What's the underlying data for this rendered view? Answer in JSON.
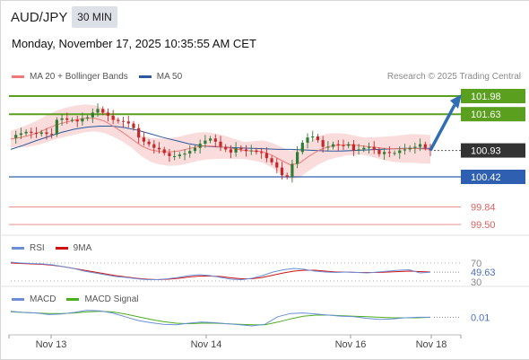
{
  "header": {
    "symbol": "AUD/JPY",
    "timeframe": "30 MIN",
    "datetime": "Monday, November 17, 2025 10:35:55 AM CET"
  },
  "legend": {
    "ma20": "MA 20 + Bollinger Bands",
    "ma50": "MA 50",
    "credit": "Research © 2025 Trading Central",
    "ma20_color": "#f27777",
    "ma50_color": "#2a5a9e"
  },
  "colors": {
    "up": "#2e7d32",
    "down": "#c62828",
    "bollinger_fill": "#f9d6d6",
    "resistance": "#5aa01e",
    "support": "#2e5fb0",
    "minor_level": "#e06060",
    "price_label": "#333333",
    "arrow": "#2f6db5",
    "rsi": "#6a8fd8",
    "rsi_ma": "#d11111",
    "macd": "#6a8fd8",
    "macd_signal": "#4caf20"
  },
  "chart_data": [
    {
      "type": "candlestick",
      "panel": "price",
      "x_ticks": [
        "Nov 13",
        "Nov 14",
        "Nov 16",
        "Nov 18"
      ],
      "ylim": [
        99.4,
        102.2
      ],
      "levels": [
        {
          "value": 101.98,
          "label": "101.98",
          "kind": "resistance"
        },
        {
          "value": 101.63,
          "label": "101.63",
          "kind": "resistance"
        },
        {
          "value": 100.93,
          "label": "100.93",
          "kind": "current"
        },
        {
          "value": 100.42,
          "label": "100.42",
          "kind": "support"
        },
        {
          "value": 99.84,
          "label": "99.84",
          "kind": "minor"
        },
        {
          "value": 99.5,
          "label": "99.50",
          "kind": "minor"
        }
      ],
      "close_series": [
        101.17,
        101.23,
        101.26,
        101.29,
        101.27,
        101.25,
        101.28,
        101.25,
        101.24,
        101.52,
        101.55,
        101.52,
        101.52,
        101.49,
        101.55,
        101.57,
        101.66,
        101.73,
        101.66,
        101.6,
        101.52,
        101.5,
        101.49,
        101.45,
        101.36,
        101.18,
        101.1,
        101.05,
        100.98,
        100.95,
        100.88,
        100.82,
        100.82,
        100.85,
        100.87,
        100.92,
        100.98,
        101.06,
        101.12,
        101.16,
        101.1,
        101.0,
        100.95,
        100.89,
        100.98,
        100.95,
        100.92,
        100.93,
        100.9,
        100.88,
        100.78,
        100.7,
        100.6,
        100.45,
        100.42,
        100.67,
        100.9,
        101.08,
        101.18,
        101.2,
        101.13,
        101.0,
        101.0,
        101.05,
        101.03,
        101.02,
        101.05,
        100.93,
        100.95,
        100.98,
        101.0,
        100.94,
        100.86,
        100.9,
        100.88,
        100.88,
        100.93,
        100.95,
        100.98,
        101.0,
        101.05,
        100.98,
        100.93
      ],
      "ma20_series": [
        101.15,
        101.18,
        101.22,
        101.28,
        101.36,
        101.43,
        101.48,
        101.52,
        101.55,
        101.55,
        101.5,
        101.4,
        101.28,
        101.15,
        101.02,
        100.94,
        100.91,
        100.9,
        100.92,
        100.96,
        101.0,
        101.02,
        101.01,
        100.99,
        100.96,
        100.93,
        100.92,
        100.91,
        100.84,
        100.74,
        100.65,
        100.69,
        100.82,
        100.93,
        101.0,
        101.03,
        101.04,
        101.03,
        101.01,
        100.99,
        100.97,
        100.96,
        100.96,
        100.97,
        100.96,
        100.95
      ],
      "ma50_series": [
        100.95,
        101.03,
        101.12,
        101.2,
        101.28,
        101.34,
        101.38,
        101.4,
        101.4,
        101.37,
        101.32,
        101.25,
        101.18,
        101.12,
        101.06,
        101.02,
        101.0,
        100.99,
        100.98,
        100.97,
        100.96,
        100.95,
        100.95,
        100.94,
        100.93,
        100.92,
        100.92,
        100.93,
        100.94,
        100.95,
        100.96,
        100.97,
        100.97,
        100.97
      ]
    },
    {
      "type": "line",
      "panel": "RSI",
      "series": [
        {
          "name": "RSI",
          "values": [
            72,
            70,
            69,
            68,
            66,
            62,
            58,
            52,
            48,
            44,
            40,
            38,
            35,
            33,
            33,
            35,
            38,
            42,
            44,
            42,
            38,
            34,
            33,
            36,
            42,
            50,
            55,
            58,
            56,
            52,
            50,
            49,
            50,
            49,
            48,
            50,
            52,
            54,
            55,
            48,
            49.63
          ]
        },
        {
          "name": "9MA",
          "values": [
            70,
            69,
            68,
            67,
            65,
            62,
            58,
            54,
            50,
            46,
            42,
            39,
            36,
            34,
            33,
            34,
            36,
            39,
            41,
            41,
            40,
            37,
            35,
            35,
            38,
            43,
            48,
            52,
            54,
            54,
            52,
            50,
            50,
            49,
            49,
            49,
            50,
            51,
            52,
            51,
            50
          ]
        }
      ],
      "ticks": [
        "70",
        "30"
      ],
      "last_value": "49.63"
    },
    {
      "type": "line",
      "panel": "MACD",
      "series": [
        {
          "name": "MACD",
          "values": [
            0.12,
            0.1,
            0.09,
            0.06,
            0.07,
            0.1,
            0.14,
            0.13,
            0.09,
            0.02,
            -0.05,
            -0.09,
            -0.12,
            -0.13,
            -0.1,
            -0.08,
            -0.09,
            -0.11,
            -0.13,
            -0.15,
            -0.12,
            0.02,
            0.08,
            0.09,
            0.07,
            0.05,
            0.03,
            0.02,
            -0.01,
            -0.03,
            -0.02,
            0.0,
            0.01,
            0.01
          ]
        },
        {
          "name": "MACD Signal",
          "values": [
            0.11,
            0.1,
            0.09,
            0.08,
            0.08,
            0.09,
            0.11,
            0.12,
            0.11,
            0.07,
            0.02,
            -0.03,
            -0.07,
            -0.1,
            -0.11,
            -0.1,
            -0.1,
            -0.11,
            -0.12,
            -0.13,
            -0.13,
            -0.08,
            -0.02,
            0.03,
            0.05,
            0.05,
            0.04,
            0.03,
            0.02,
            0.01,
            0.0,
            0.0,
            0.0,
            0.01
          ]
        }
      ],
      "last_value": "0.01"
    }
  ]
}
